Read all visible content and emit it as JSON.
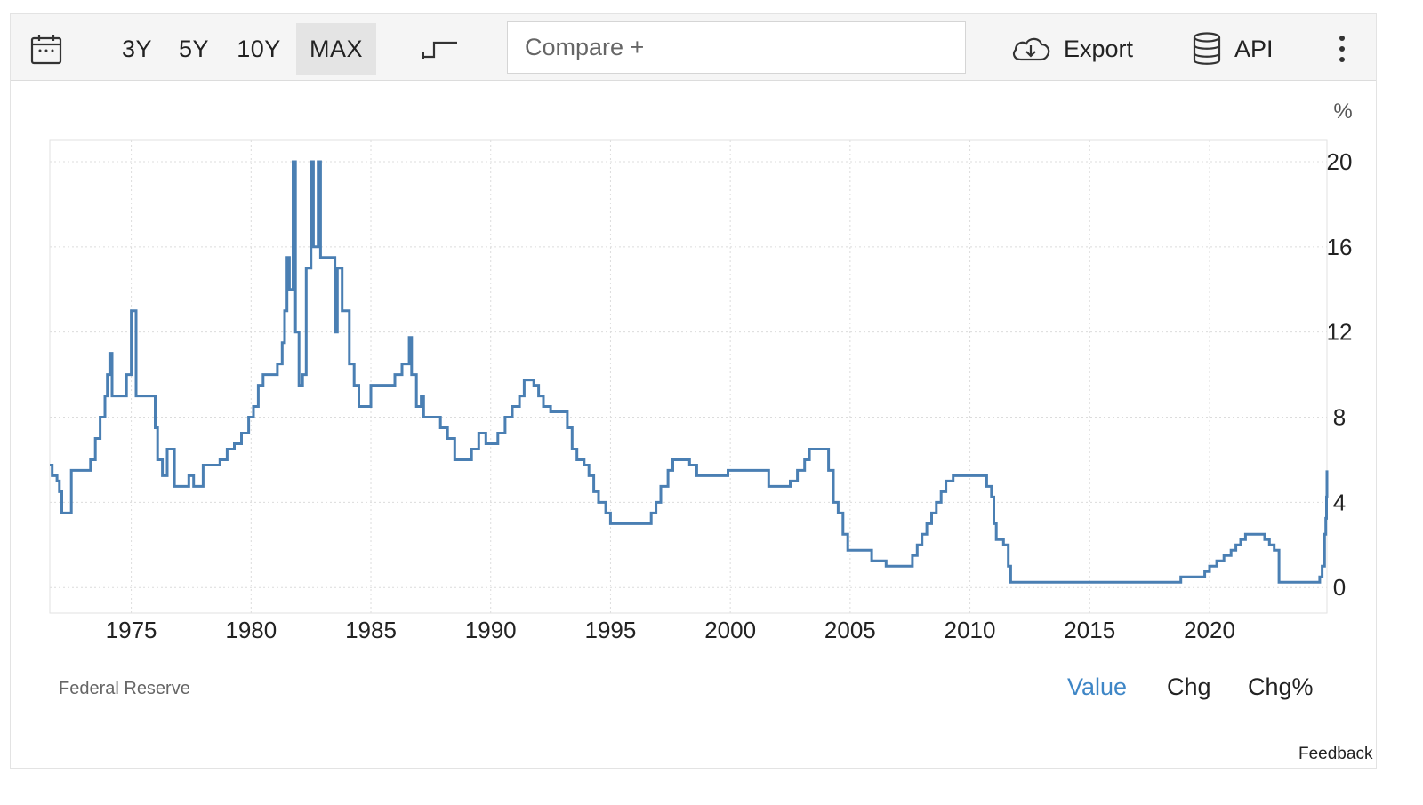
{
  "toolbar": {
    "calendar_icon": "calendar-icon",
    "ranges": [
      "3Y",
      "5Y",
      "10Y",
      "MAX"
    ],
    "active_range": "MAX",
    "chart_style_icon": "step-line-icon",
    "compare_placeholder": "Compare +",
    "export_label": "Export",
    "export_icon": "cloud-download-icon",
    "api_label": "API",
    "api_icon": "database-icon",
    "more_icon": "kebab-menu-icon"
  },
  "source": "Federal Reserve",
  "modes": {
    "items": [
      "Value",
      "Chg",
      "Chg%"
    ],
    "active": "Value",
    "active_color": "#3e86c6"
  },
  "feedback_label": "Feedback",
  "chart_data": {
    "type": "line",
    "style": "step",
    "unit": "%",
    "line_color": "#4a7fb3",
    "grid": true,
    "xlim": [
      1971.6,
      2024.9
    ],
    "ylim": [
      -1.2,
      21
    ],
    "x_ticks": [
      1975,
      1980,
      1985,
      1990,
      1995,
      2000,
      2005,
      2010,
      2015,
      2020
    ],
    "y_ticks": [
      0,
      4,
      8,
      12,
      16,
      20
    ],
    "series": [
      {
        "values": [
          [
            1971.6,
            5.75
          ],
          [
            1971.7,
            5.25
          ],
          [
            1971.9,
            5.0
          ],
          [
            1972.0,
            4.5
          ],
          [
            1972.1,
            3.5
          ],
          [
            1972.4,
            3.5
          ],
          [
            1972.5,
            5.5
          ],
          [
            1973.0,
            5.5
          ],
          [
            1973.3,
            6.0
          ],
          [
            1973.5,
            7.0
          ],
          [
            1973.7,
            8.0
          ],
          [
            1973.9,
            9.0
          ],
          [
            1974.0,
            10.0
          ],
          [
            1974.1,
            11.0
          ],
          [
            1974.2,
            9.0
          ],
          [
            1974.7,
            9.0
          ],
          [
            1974.8,
            10.0
          ],
          [
            1975.0,
            13.0
          ],
          [
            1975.2,
            9.0
          ],
          [
            1975.8,
            9.0
          ],
          [
            1976.0,
            7.5
          ],
          [
            1976.1,
            6.0
          ],
          [
            1976.3,
            5.25
          ],
          [
            1976.5,
            6.5
          ],
          [
            1976.8,
            4.75
          ],
          [
            1977.3,
            4.75
          ],
          [
            1977.4,
            5.25
          ],
          [
            1977.6,
            4.75
          ],
          [
            1977.9,
            4.75
          ],
          [
            1978.0,
            5.75
          ],
          [
            1978.5,
            5.75
          ],
          [
            1978.7,
            6.0
          ],
          [
            1979.0,
            6.5
          ],
          [
            1979.3,
            6.75
          ],
          [
            1979.6,
            7.25
          ],
          [
            1979.9,
            8.0
          ],
          [
            1980.1,
            8.5
          ],
          [
            1980.3,
            9.5
          ],
          [
            1980.5,
            10.0
          ],
          [
            1980.9,
            10.0
          ],
          [
            1981.1,
            10.5
          ],
          [
            1981.3,
            11.5
          ],
          [
            1981.4,
            13.0
          ],
          [
            1981.5,
            15.5
          ],
          [
            1981.6,
            14.0
          ],
          [
            1981.75,
            20.0
          ],
          [
            1981.85,
            12.0
          ],
          [
            1982.0,
            9.5
          ],
          [
            1982.15,
            10.0
          ],
          [
            1982.3,
            15.0
          ],
          [
            1982.5,
            20.0
          ],
          [
            1982.6,
            16.0
          ],
          [
            1982.8,
            20.0
          ],
          [
            1982.9,
            15.5
          ],
          [
            1983.4,
            15.5
          ],
          [
            1983.5,
            12.0
          ],
          [
            1983.6,
            15.0
          ],
          [
            1983.8,
            13.0
          ],
          [
            1984.1,
            10.5
          ],
          [
            1984.3,
            9.5
          ],
          [
            1984.5,
            8.5
          ],
          [
            1984.9,
            8.5
          ],
          [
            1985.0,
            9.5
          ],
          [
            1985.8,
            9.5
          ],
          [
            1986.0,
            10.0
          ],
          [
            1986.3,
            10.5
          ],
          [
            1986.6,
            11.75
          ],
          [
            1986.7,
            10.0
          ],
          [
            1986.9,
            8.5
          ],
          [
            1987.1,
            9.0
          ],
          [
            1987.2,
            8.0
          ],
          [
            1987.6,
            8.0
          ],
          [
            1987.9,
            7.5
          ],
          [
            1988.2,
            7.0
          ],
          [
            1988.5,
            6.0
          ],
          [
            1988.8,
            6.0
          ],
          [
            1989.2,
            6.5
          ],
          [
            1989.5,
            7.25
          ],
          [
            1989.8,
            6.75
          ],
          [
            1990.0,
            6.75
          ],
          [
            1990.3,
            7.25
          ],
          [
            1990.6,
            8.0
          ],
          [
            1990.9,
            8.5
          ],
          [
            1991.2,
            9.0
          ],
          [
            1991.4,
            9.75
          ],
          [
            1991.8,
            9.5
          ],
          [
            1992.0,
            9.0
          ],
          [
            1992.2,
            8.5
          ],
          [
            1992.5,
            8.25
          ],
          [
            1993.0,
            8.25
          ],
          [
            1993.2,
            7.5
          ],
          [
            1993.4,
            6.5
          ],
          [
            1993.6,
            6.0
          ],
          [
            1993.9,
            5.75
          ],
          [
            1994.1,
            5.25
          ],
          [
            1994.3,
            4.5
          ],
          [
            1994.5,
            4.0
          ],
          [
            1994.8,
            3.5
          ],
          [
            1995.0,
            3.0
          ],
          [
            1996.5,
            3.0
          ],
          [
            1996.7,
            3.5
          ],
          [
            1996.9,
            4.0
          ],
          [
            1997.1,
            4.75
          ],
          [
            1997.4,
            5.5
          ],
          [
            1997.6,
            6.0
          ],
          [
            1998.0,
            6.0
          ],
          [
            1998.3,
            5.75
          ],
          [
            1998.6,
            5.25
          ],
          [
            1999.8,
            5.25
          ],
          [
            1999.9,
            5.5
          ],
          [
            2001.4,
            5.5
          ],
          [
            2001.6,
            4.75
          ],
          [
            2002.3,
            4.75
          ],
          [
            2002.5,
            5.0
          ],
          [
            2002.8,
            5.5
          ],
          [
            2003.1,
            6.0
          ],
          [
            2003.3,
            6.5
          ],
          [
            2003.9,
            6.5
          ],
          [
            2004.1,
            5.5
          ],
          [
            2004.3,
            4.0
          ],
          [
            2004.5,
            3.5
          ],
          [
            2004.7,
            2.5
          ],
          [
            2004.9,
            1.75
          ],
          [
            2005.8,
            1.75
          ],
          [
            2005.9,
            1.25
          ],
          [
            2006.5,
            1.0
          ],
          [
            2007.4,
            1.0
          ],
          [
            2007.6,
            1.5
          ],
          [
            2007.8,
            2.0
          ],
          [
            2008.0,
            2.5
          ],
          [
            2008.2,
            3.0
          ],
          [
            2008.4,
            3.5
          ],
          [
            2008.6,
            4.0
          ],
          [
            2008.8,
            4.5
          ],
          [
            2009.0,
            5.0
          ],
          [
            2009.3,
            5.25
          ],
          [
            2010.5,
            5.25
          ],
          [
            2010.7,
            4.75
          ],
          [
            2010.9,
            4.25
          ],
          [
            2011.0,
            3.0
          ],
          [
            2011.1,
            2.25
          ],
          [
            2011.4,
            2.0
          ],
          [
            2011.6,
            1.0
          ],
          [
            2011.7,
            0.25
          ],
          [
            2018.6,
            0.25
          ],
          [
            2018.8,
            0.5
          ],
          [
            2019.8,
            0.75
          ],
          [
            2020.0,
            1.0
          ],
          [
            2020.3,
            1.25
          ],
          [
            2020.6,
            1.5
          ],
          [
            2020.9,
            1.75
          ],
          [
            2021.1,
            2.0
          ],
          [
            2021.3,
            2.25
          ],
          [
            2021.5,
            2.5
          ],
          [
            2022.1,
            2.5
          ],
          [
            2022.3,
            2.25
          ],
          [
            2022.5,
            2.0
          ],
          [
            2022.7,
            1.75
          ],
          [
            2022.9,
            0.25
          ],
          [
            2024.5,
            0.25
          ],
          [
            2024.6,
            0.5
          ],
          [
            2024.7,
            1.0
          ],
          [
            2024.8,
            2.5
          ],
          [
            2024.85,
            3.25
          ],
          [
            2024.88,
            4.25
          ],
          [
            2024.9,
            5.5
          ]
        ]
      }
    ]
  }
}
